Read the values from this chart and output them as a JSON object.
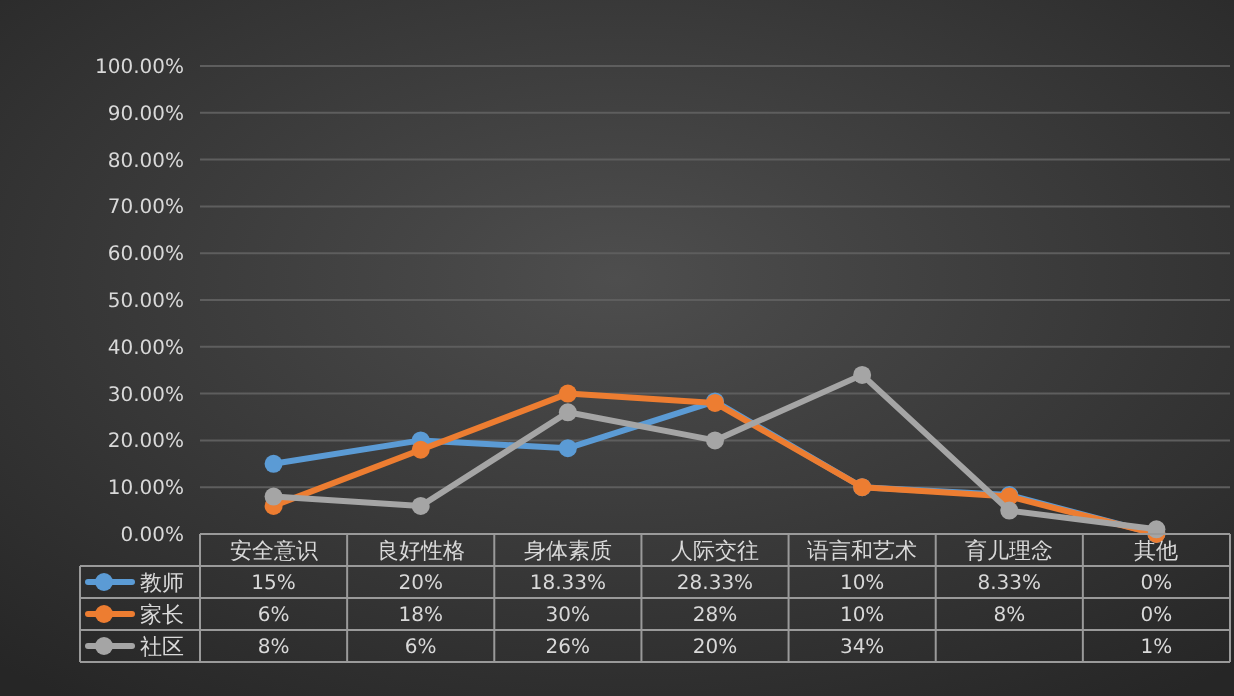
{
  "chart_data": {
    "type": "line",
    "categories": [
      "安全意识",
      "良好性格",
      "身体素质",
      "人际交往",
      "语言和艺术",
      "育儿理念",
      "其他"
    ],
    "series": [
      {
        "name": "教师",
        "color": "#5b9bd5",
        "values": [
          15,
          20,
          18.33,
          28.33,
          10,
          8.33,
          0
        ],
        "value_labels": [
          "15%",
          "20%",
          "18.33%",
          "28.33%",
          "10%",
          "8.33%",
          "0%"
        ]
      },
      {
        "name": "家长",
        "color": "#ed7d31",
        "values": [
          6,
          18,
          30,
          28,
          10,
          8,
          0
        ],
        "value_labels": [
          "6%",
          "18%",
          "30%",
          "28%",
          "10%",
          "8%",
          "0%"
        ]
      },
      {
        "name": "社区",
        "color": "#a5a5a5",
        "values": [
          8,
          6,
          26,
          20,
          34,
          5,
          1
        ],
        "value_labels": [
          "8%",
          "6%",
          "26%",
          "20%",
          "34%",
          null,
          "1%"
        ]
      }
    ],
    "ylim": [
      0,
      100
    ],
    "yticks": [
      {
        "value": 0,
        "label": "0.00%"
      },
      {
        "value": 10,
        "label": "10.00%"
      },
      {
        "value": 20,
        "label": "20.00%"
      },
      {
        "value": 30,
        "label": "30.00%"
      },
      {
        "value": 40,
        "label": "40.00%"
      },
      {
        "value": 50,
        "label": "50.00%"
      },
      {
        "value": 60,
        "label": "60.00%"
      },
      {
        "value": 70,
        "label": "70.00%"
      },
      {
        "value": 80,
        "label": "80.00%"
      },
      {
        "value": 90,
        "label": "90.00%"
      },
      {
        "value": 100,
        "label": "100.00%"
      }
    ],
    "grid": "y",
    "legend": "bottom",
    "marker": "circle",
    "line_style": "solid"
  }
}
